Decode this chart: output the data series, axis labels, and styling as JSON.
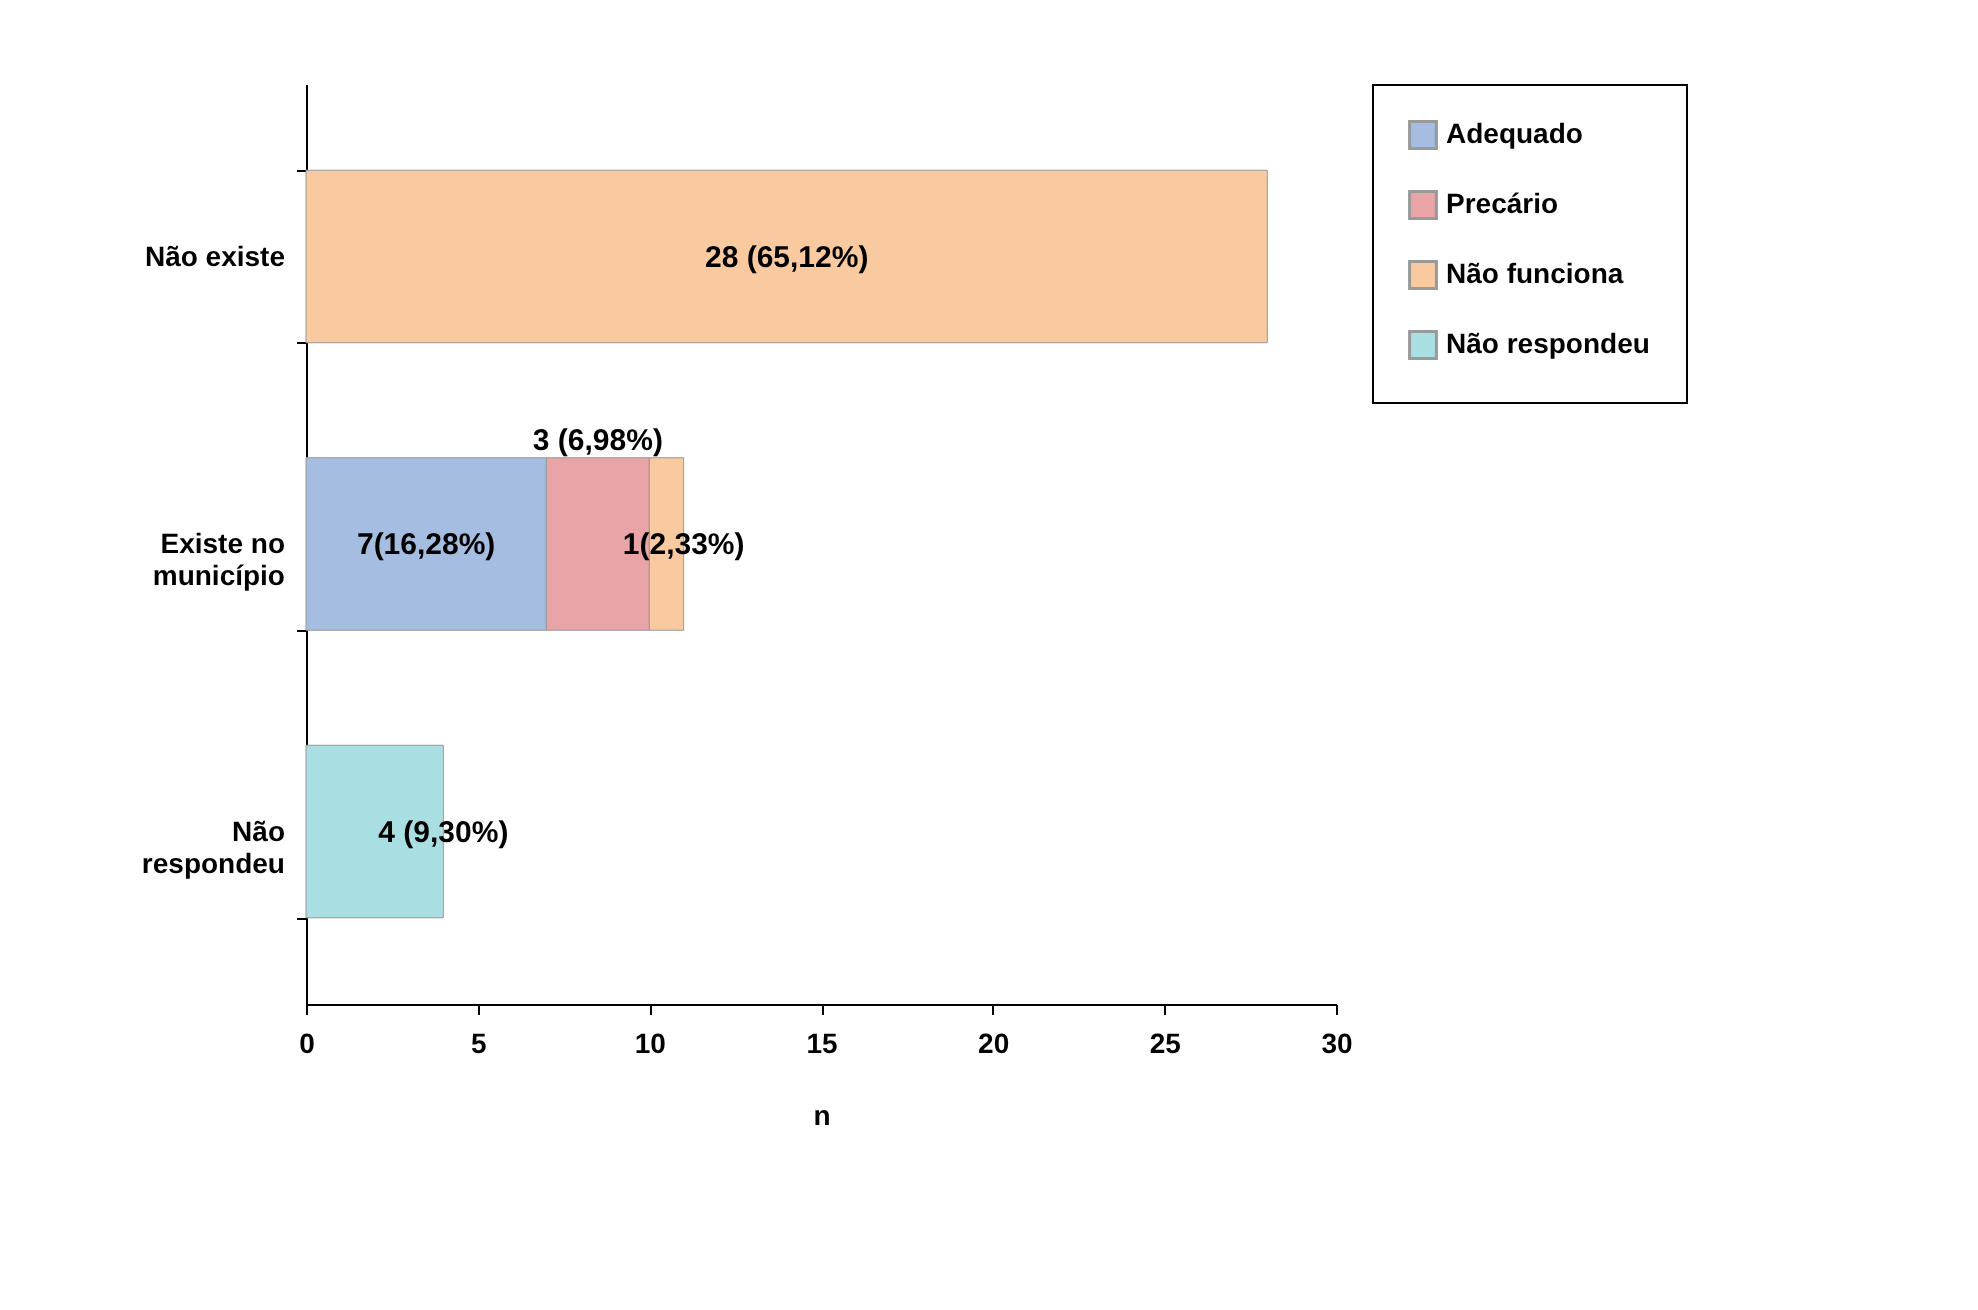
{
  "chart_data": {
    "type": "bar",
    "orientation": "horizontal",
    "stacked": true,
    "xlabel": "n",
    "categories": [
      "Não existe",
      "Existe no município",
      "Não respondeu"
    ],
    "series": [
      {
        "name": "Adequado",
        "color": "#a4bde0",
        "values": [
          null,
          7,
          null
        ],
        "value_labels": [
          null,
          "7(16,28%)",
          null
        ]
      },
      {
        "name": "Precário",
        "color": "#e8a4a6",
        "values": [
          null,
          3,
          null
        ],
        "value_labels": [
          null,
          "3 (6,98%)",
          null
        ]
      },
      {
        "name": "Não funciona",
        "color": "#f9c9a0",
        "values": [
          28,
          1,
          null
        ],
        "value_labels": [
          "28 (65,12%)",
          "1(2,33%)",
          null
        ]
      },
      {
        "name": "Não respondeu",
        "color": "#a9dfe2",
        "values": [
          null,
          null,
          4
        ],
        "value_labels": [
          null,
          null,
          "4 (9,30%)"
        ]
      }
    ],
    "xlim": [
      0,
      30
    ],
    "xticks": [
      0,
      5,
      10,
      15,
      20,
      25,
      30
    ],
    "legend": "right",
    "grid": false
  }
}
